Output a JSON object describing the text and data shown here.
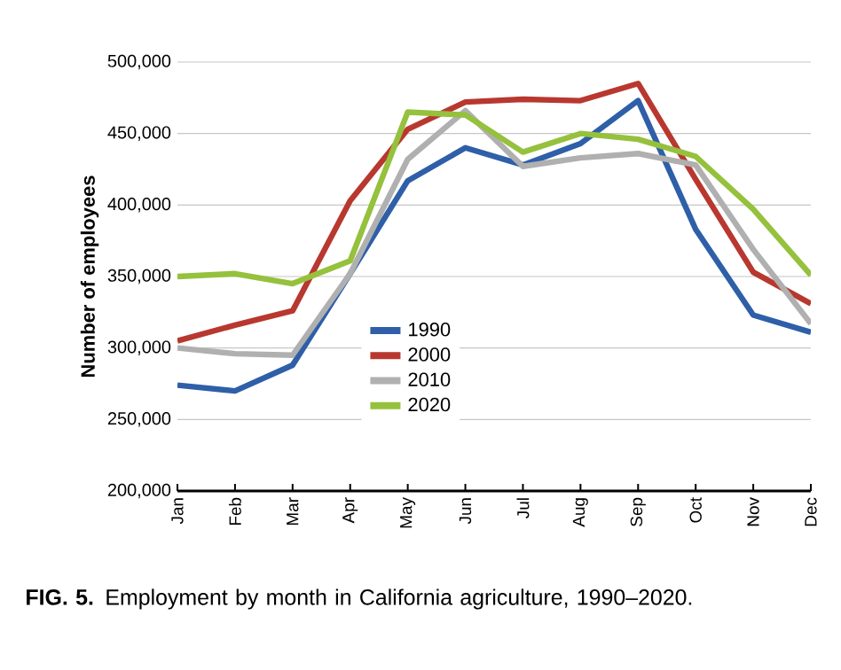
{
  "chart_data": {
    "type": "line",
    "ylabel": "Number of employees",
    "categories": [
      "Jan",
      "Feb",
      "Mar",
      "Apr",
      "May",
      "Jun",
      "Jul",
      "Aug",
      "Sep",
      "Oct",
      "Nov",
      "Dec"
    ],
    "series": [
      {
        "name": "1990",
        "color": "#2e5fa8",
        "values": [
          274000,
          270000,
          288000,
          352000,
          417000,
          440000,
          428000,
          443000,
          473000,
          383000,
          323000,
          311000
        ]
      },
      {
        "name": "2000",
        "color": "#b8382f",
        "values": [
          305000,
          316000,
          326000,
          403000,
          453000,
          472000,
          474000,
          473000,
          485000,
          418000,
          353000,
          331000
        ]
      },
      {
        "name": "2010",
        "color": "#b0b0b0",
        "values": [
          300000,
          296000,
          295000,
          352000,
          432000,
          466000,
          427000,
          433000,
          436000,
          428000,
          369000,
          317000
        ]
      },
      {
        "name": "2020",
        "color": "#95c13d",
        "values": [
          350000,
          352000,
          345000,
          361000,
          465000,
          463000,
          437000,
          450000,
          446000,
          434000,
          397000,
          351000
        ]
      }
    ],
    "ylim": [
      200000,
      500000
    ],
    "yticks": [
      {
        "value": 200000,
        "label": "200,000"
      },
      {
        "value": 250000,
        "label": "250,000"
      },
      {
        "value": 300000,
        "label": "300,000"
      },
      {
        "value": 350000,
        "label": "350,000"
      },
      {
        "value": 400000,
        "label": "400,000"
      },
      {
        "value": 450000,
        "label": "450,000"
      },
      {
        "value": 500000,
        "label": "500,000"
      }
    ],
    "grid": "y",
    "legend": "bottom",
    "line_style": "solid",
    "annotations": [
      "**FIG. 5.** Employment by month in California agriculture, 1990–2020."
    ]
  }
}
